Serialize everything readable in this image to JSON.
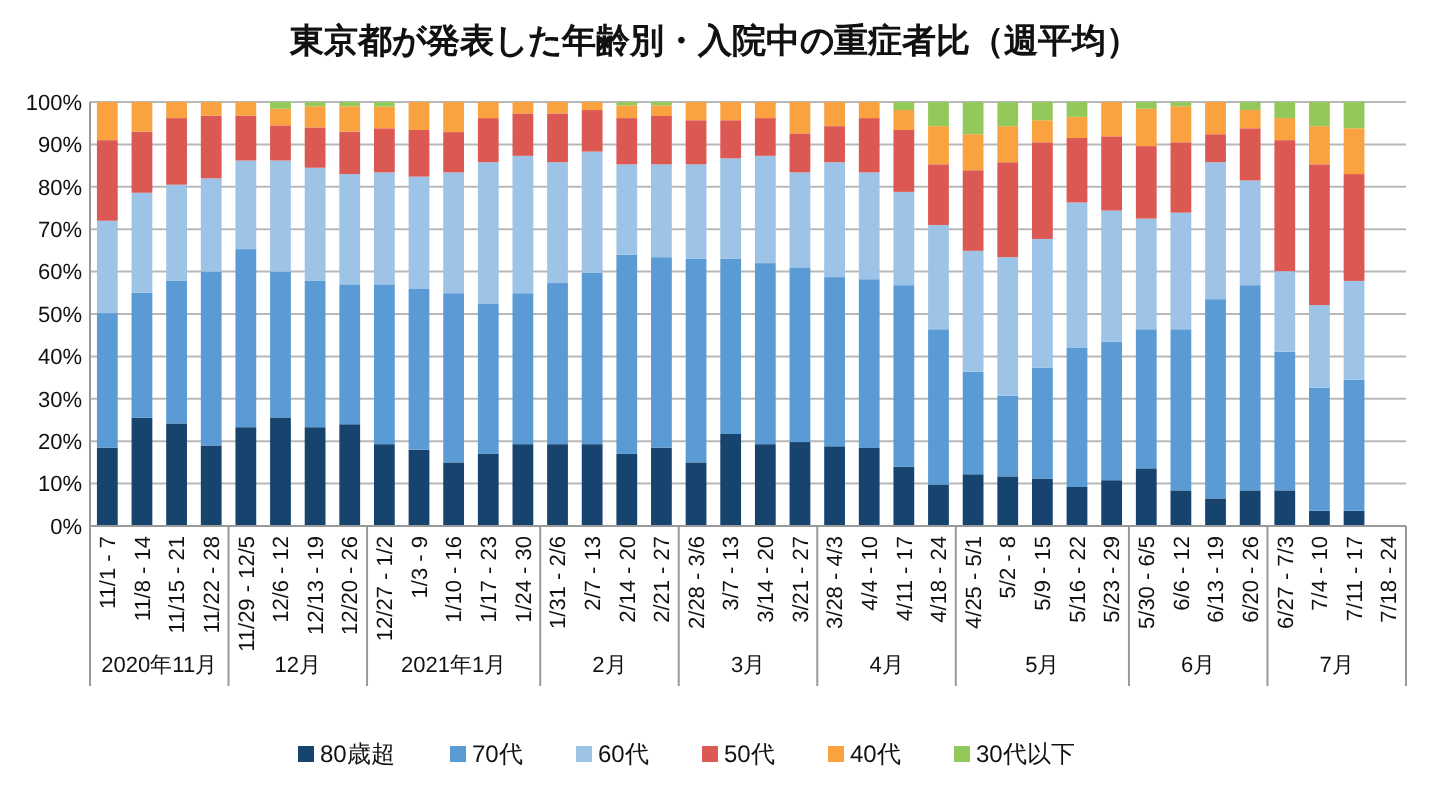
{
  "chart_data": {
    "type": "bar",
    "title": "東京都が発表した年齢別・入院中の重症者比（週平均）",
    "stacked": true,
    "legend": "bottom",
    "grid": "y",
    "categories": [
      "11/1 - 7",
      "11/8 - 14",
      "11/15 - 21",
      "11/22 - 28",
      "11/29 - 12/5",
      "12/6 - 12",
      "12/13 - 19",
      "12/20 - 26",
      "12/27 - 1/2",
      "1/3 - 9",
      "1/10 - 16",
      "1/17 - 23",
      "1/24 - 30",
      "1/31 - 2/6",
      "2/7 - 13",
      "2/14 - 20",
      "2/21 - 27",
      "2/28 - 3/6",
      "3/7 - 13",
      "3/14 - 20",
      "3/21 - 27",
      "3/28 - 4/3",
      "4/4 - 10",
      "4/11 - 17",
      "4/18 - 24",
      "4/25 - 5/1",
      "5/2 - 8",
      "5/9 - 15",
      "5/16 - 22",
      "5/23 - 29",
      "5/30 - 6/5",
      "6/6 - 12",
      "6/13 - 19",
      "6/20 - 26",
      "6/27 - 7/3",
      "7/4 - 10",
      "7/11 - 17",
      "7/18 - 24"
    ],
    "series": [
      {
        "name": "80歳超",
        "color": "#17436f",
        "values": [
          18.5,
          25.5,
          24.2,
          19,
          23.3,
          25.6,
          23.3,
          24,
          19.3,
          18,
          15,
          17,
          19.3,
          19.3,
          19.3,
          17,
          18.5,
          15,
          21.7,
          19.3,
          19.8,
          18.8,
          18.4,
          14,
          9.8,
          12.2,
          11.7,
          11.2,
          9.2,
          10.8,
          13.6,
          8.4,
          6.5,
          8.4,
          8.4,
          3.6,
          3.6,
          null
        ]
      },
      {
        "name": "70代",
        "color": "#5b9bd5",
        "values": [
          31.7,
          29.5,
          33.6,
          41,
          42,
          34.4,
          34.5,
          33,
          37.7,
          37.9,
          39.9,
          35.5,
          35.6,
          38,
          40.4,
          47,
          44.9,
          48,
          41.3,
          42.7,
          41.2,
          39.9,
          39.8,
          42.8,
          36.6,
          24.2,
          19,
          26.1,
          32.9,
          32.7,
          32.8,
          38,
          47,
          48.4,
          32.7,
          29,
          30.9,
          null
        ]
      },
      {
        "name": "60代",
        "color": "#9dc3e6",
        "values": [
          21.8,
          23.6,
          22.7,
          22,
          20.9,
          26.2,
          26.7,
          26,
          26.4,
          26.5,
          28.5,
          33.3,
          32.4,
          28.5,
          28.6,
          21.3,
          21.9,
          22.3,
          23.7,
          25.3,
          22.4,
          27.1,
          25.2,
          22,
          24.6,
          28.5,
          32.7,
          30.4,
          34.2,
          30.9,
          26.1,
          27.5,
          32.3,
          24.7,
          19,
          19.5,
          23.3,
          null
        ]
      },
      {
        "name": "50代",
        "color": "#dc5853",
        "values": [
          19,
          14.4,
          15.7,
          14.8,
          10.6,
          8.3,
          9.5,
          10,
          10.4,
          11,
          9.5,
          10.4,
          10,
          11.5,
          9.8,
          10.9,
          11.4,
          10.4,
          9,
          8.9,
          9.2,
          8.5,
          12.8,
          14.6,
          14.3,
          19,
          22.4,
          22.8,
          15.2,
          17.5,
          17.1,
          16.6,
          6.6,
          12.3,
          30.9,
          33.2,
          25.2,
          null
        ]
      },
      {
        "name": "40代",
        "color": "#f9a23f",
        "values": [
          9,
          7,
          3.8,
          3.2,
          3.2,
          3.9,
          5,
          6,
          5.1,
          6.6,
          7.1,
          3.8,
          2.7,
          2.7,
          1.9,
          3,
          2.5,
          4.3,
          4.3,
          3.8,
          7.4,
          5.7,
          3.8,
          4.7,
          9,
          8.5,
          8.5,
          5.2,
          5,
          8.1,
          8.8,
          8.5,
          7.6,
          4.3,
          5.2,
          9,
          10.8,
          null
        ]
      },
      {
        "name": "30代以下",
        "color": "#92c95a",
        "values": [
          0,
          0,
          0,
          0,
          0,
          1.6,
          1,
          1,
          1.1,
          0,
          0,
          0,
          0,
          0,
          0,
          0.8,
          0.8,
          0,
          0,
          0,
          0,
          0,
          0,
          1.9,
          5.7,
          7.6,
          5.7,
          4.3,
          3.5,
          0,
          1.6,
          1,
          0,
          1.9,
          3.8,
          5.7,
          6.2,
          null
        ]
      }
    ],
    "ylim": [
      0,
      100
    ],
    "yticks": [
      {
        "value": 0,
        "label": "0%"
      },
      {
        "value": 10,
        "label": "10%"
      },
      {
        "value": 20,
        "label": "20%"
      },
      {
        "value": 30,
        "label": "30%"
      },
      {
        "value": 40,
        "label": "40%"
      },
      {
        "value": 50,
        "label": "50%"
      },
      {
        "value": 60,
        "label": "60%"
      },
      {
        "value": 70,
        "label": "70%"
      },
      {
        "value": 80,
        "label": "80%"
      },
      {
        "value": 90,
        "label": "90%"
      },
      {
        "value": 100,
        "label": "100%"
      }
    ],
    "annotations": [
      "2020年11月",
      "12月",
      "2021年1月",
      "2月",
      "3月",
      "4月",
      "5月",
      "6月",
      "7月"
    ]
  }
}
